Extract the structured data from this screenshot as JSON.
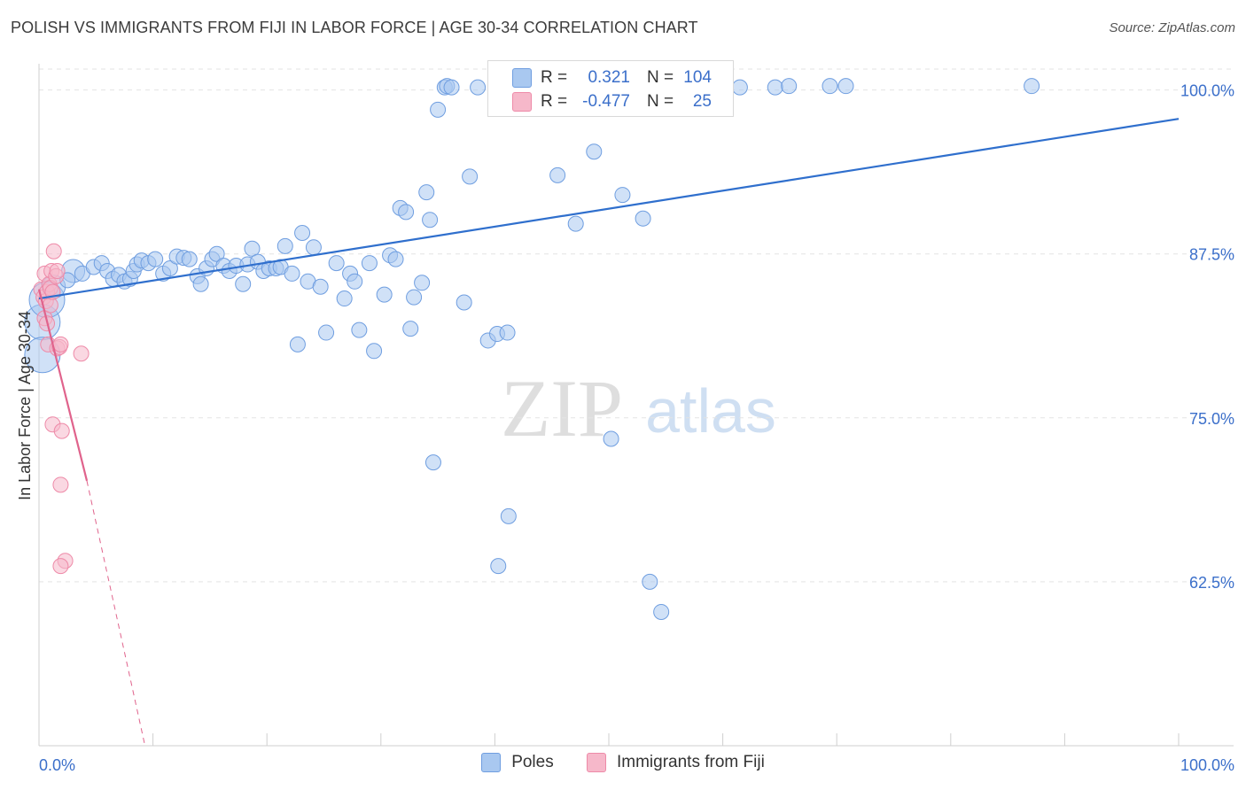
{
  "title": "POLISH VS IMMIGRANTS FROM FIJI IN LABOR FORCE | AGE 30-34 CORRELATION CHART",
  "source": "Source: ZipAtlas.com",
  "watermark": {
    "zip": "ZIP",
    "atlas": "atlas"
  },
  "colors": {
    "poles_fill": "#a9c8f0",
    "poles_stroke": "#6f9ee0",
    "poles_line": "#2f6fcd",
    "fiji_fill": "#f6b8ca",
    "fiji_stroke": "#ee8aa8",
    "fiji_line": "#e0638c",
    "grid": "#e3e3e3",
    "tick_label": "#3b6fca"
  },
  "stats": [
    {
      "series": "Poles",
      "r_label": "R =",
      "r": "0.321",
      "n_label": "N =",
      "n": "104"
    },
    {
      "series": "Immigrants from Fiji",
      "r_label": "R =",
      "r": "-0.477",
      "n_label": "N =",
      "n": "25"
    }
  ],
  "legend": [
    "Poles",
    "Immigrants from Fiji"
  ],
  "chart_data": {
    "type": "scatter",
    "title": "POLISH VS IMMIGRANTS FROM FIJI IN LABOR FORCE | AGE 30-34 CORRELATION CHART",
    "xlabel": "",
    "ylabel": "In Labor Force | Age 30-34",
    "xlim": [
      0,
      100
    ],
    "ylim": [
      50,
      102
    ],
    "x_tick_labels": [
      "0.0%",
      "100.0%"
    ],
    "y_ticks": [
      62.5,
      75.0,
      87.5,
      100.0
    ],
    "y_tick_labels": [
      "62.5%",
      "75.0%",
      "87.5%",
      "100.0%"
    ],
    "grid": true,
    "legend_position": "bottom",
    "series": [
      {
        "name": "Poles",
        "points": [
          [
            0.3,
            82.3,
            "xl"
          ],
          [
            0.3,
            79.8,
            "xl"
          ],
          [
            0.7,
            84.0,
            "xl"
          ],
          [
            1.3,
            85.0,
            "l"
          ],
          [
            3.0,
            86.2,
            "l"
          ],
          [
            2.5,
            85.5
          ],
          [
            3.8,
            86.0
          ],
          [
            4.8,
            86.5
          ],
          [
            5.5,
            86.8
          ],
          [
            6.0,
            86.2
          ],
          [
            6.5,
            85.6
          ],
          [
            7.0,
            85.9
          ],
          [
            7.5,
            85.4
          ],
          [
            8.0,
            85.6
          ],
          [
            8.3,
            86.2
          ],
          [
            8.6,
            86.7
          ],
          [
            9.0,
            87.0
          ],
          [
            9.6,
            86.8
          ],
          [
            10.2,
            87.1
          ],
          [
            10.9,
            86.0
          ],
          [
            11.5,
            86.4
          ],
          [
            12.1,
            87.3
          ],
          [
            12.7,
            87.2
          ],
          [
            13.2,
            87.1
          ],
          [
            13.9,
            85.8
          ],
          [
            14.2,
            85.2
          ],
          [
            14.7,
            86.4
          ],
          [
            15.2,
            87.1
          ],
          [
            15.6,
            87.5
          ],
          [
            16.2,
            86.6
          ],
          [
            16.7,
            86.2
          ],
          [
            17.3,
            86.6
          ],
          [
            17.9,
            85.2
          ],
          [
            18.3,
            86.7
          ],
          [
            18.7,
            87.9
          ],
          [
            19.2,
            86.9
          ],
          [
            19.7,
            86.2
          ],
          [
            20.2,
            86.4
          ],
          [
            20.8,
            86.4
          ],
          [
            21.2,
            86.5
          ],
          [
            21.6,
            88.1
          ],
          [
            22.2,
            86.0
          ],
          [
            22.7,
            80.6
          ],
          [
            23.1,
            89.1
          ],
          [
            23.6,
            85.4
          ],
          [
            24.1,
            88.0
          ],
          [
            24.7,
            85.0
          ],
          [
            25.2,
            81.5
          ],
          [
            26.1,
            86.8
          ],
          [
            26.8,
            84.1
          ],
          [
            27.3,
            86.0
          ],
          [
            27.7,
            85.4
          ],
          [
            28.1,
            81.7
          ],
          [
            29.0,
            86.8
          ],
          [
            29.4,
            80.1
          ],
          [
            30.3,
            84.4
          ],
          [
            30.8,
            87.4
          ],
          [
            31.3,
            87.1
          ],
          [
            31.7,
            91.0
          ],
          [
            32.2,
            90.7
          ],
          [
            32.6,
            81.8
          ],
          [
            32.9,
            84.2
          ],
          [
            33.6,
            85.3
          ],
          [
            34.0,
            92.2
          ],
          [
            34.3,
            90.1
          ],
          [
            34.6,
            71.6
          ],
          [
            35.0,
            98.5
          ],
          [
            35.6,
            100.2
          ],
          [
            35.8,
            100.3
          ],
          [
            36.2,
            100.2
          ],
          [
            37.3,
            83.8
          ],
          [
            37.8,
            93.4
          ],
          [
            38.5,
            100.2
          ],
          [
            39.4,
            80.9
          ],
          [
            40.2,
            81.4
          ],
          [
            40.3,
            63.7
          ],
          [
            41.0,
            100.3
          ],
          [
            41.1,
            81.5
          ],
          [
            41.2,
            67.5
          ],
          [
            42.1,
            100.2
          ],
          [
            43.5,
            100.3
          ],
          [
            43.9,
            100.2
          ],
          [
            44.2,
            100.3
          ],
          [
            45.0,
            100.2
          ],
          [
            45.5,
            93.5
          ],
          [
            46.3,
            100.2
          ],
          [
            47.1,
            89.8
          ],
          [
            47.5,
            100.3
          ],
          [
            48.7,
            95.3
          ],
          [
            50.2,
            73.4
          ],
          [
            50.8,
            100.2
          ],
          [
            51.2,
            92.0
          ],
          [
            53.0,
            90.2
          ],
          [
            53.6,
            62.5
          ],
          [
            54.4,
            100.2
          ],
          [
            54.6,
            60.2
          ],
          [
            56.1,
            100.2
          ],
          [
            59.3,
            100.3
          ],
          [
            61.5,
            100.2
          ],
          [
            64.6,
            100.2
          ],
          [
            65.8,
            100.3
          ],
          [
            69.4,
            100.3
          ],
          [
            70.8,
            100.3
          ],
          [
            87.1,
            100.3
          ]
        ]
      },
      {
        "name": "Immigrants from Fiji",
        "points": [
          [
            0.2,
            84.8
          ],
          [
            0.4,
            84.2
          ],
          [
            0.5,
            86.0
          ],
          [
            0.5,
            82.6
          ],
          [
            0.6,
            83.9
          ],
          [
            0.7,
            82.2
          ],
          [
            0.7,
            84.6
          ],
          [
            0.8,
            80.6
          ],
          [
            0.9,
            85.2
          ],
          [
            1.0,
            84.9
          ],
          [
            1.0,
            83.6
          ],
          [
            1.1,
            86.2
          ],
          [
            1.2,
            84.6
          ],
          [
            1.3,
            87.7
          ],
          [
            1.5,
            85.8
          ],
          [
            1.6,
            86.2
          ],
          [
            1.6,
            80.3
          ],
          [
            1.8,
            80.4
          ],
          [
            1.9,
            80.6
          ],
          [
            1.2,
            74.5
          ],
          [
            2.0,
            74.0
          ],
          [
            1.9,
            69.9
          ],
          [
            2.3,
            64.1
          ],
          [
            1.9,
            63.7
          ],
          [
            3.7,
            79.9
          ]
        ]
      }
    ],
    "trendlines": [
      {
        "series": "Poles",
        "x": [
          0,
          100
        ],
        "y": [
          84.1,
          97.8
        ],
        "style": "solid"
      },
      {
        "series": "Immigrants from Fiji",
        "x": [
          0,
          4.2
        ],
        "y": [
          84.8,
          70.2
        ],
        "style": "solid"
      },
      {
        "series": "Immigrants from Fiji",
        "x": [
          4.2,
          9.3
        ],
        "y": [
          70.2,
          50.0
        ],
        "style": "dashed"
      }
    ]
  }
}
